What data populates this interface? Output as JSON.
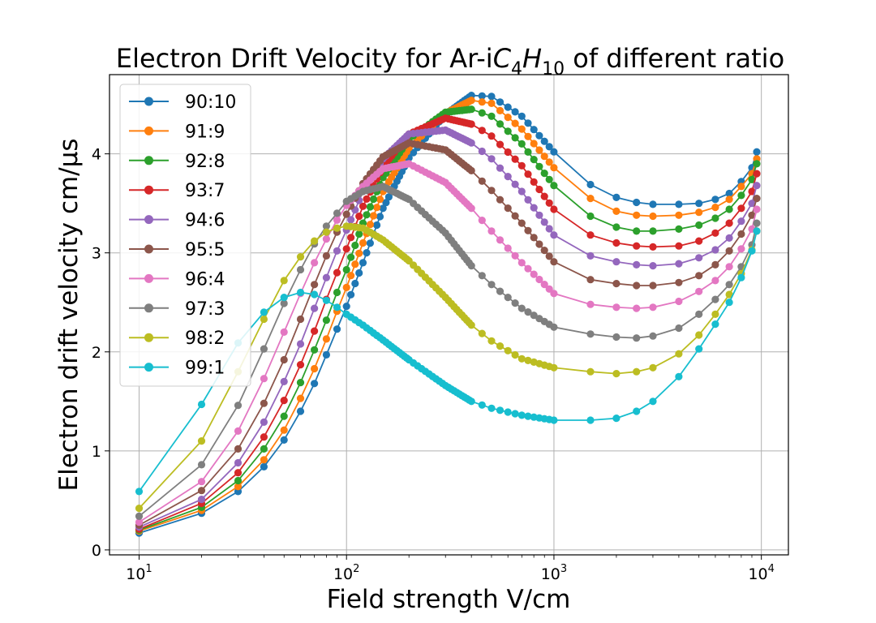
{
  "chart_data": {
    "type": "line",
    "title_prefix": "Electron Drift Velocity for Ar-i",
    "title_formula": [
      {
        "t": "C"
      },
      {
        "s": "4"
      },
      {
        "t": "H"
      },
      {
        "s": "10"
      }
    ],
    "title_suffix": " of different ratio",
    "xlabel": "Field strength V/cm",
    "ylabel": "Electron drift velocity cm/μs",
    "xscale": "log",
    "xlim": [
      7.2,
      13500
    ],
    "ylim": [
      -0.05,
      4.8
    ],
    "x_ticks": [
      {
        "base": "10",
        "exp": "1",
        "value": 10
      },
      {
        "base": "10",
        "exp": "2",
        "value": 100
      },
      {
        "base": "10",
        "exp": "3",
        "value": 1000
      },
      {
        "base": "10",
        "exp": "4",
        "value": 10000
      }
    ],
    "y_ticks": [
      0,
      1,
      2,
      3,
      4
    ],
    "grid": true,
    "legend_position": "upper-left",
    "series": [
      {
        "name": "90:10",
        "color": "#1f77b4",
        "anchors": [
          [
            10,
            0.17
          ],
          [
            20,
            0.37
          ],
          [
            30,
            0.59
          ],
          [
            40,
            0.84
          ],
          [
            50,
            1.11
          ],
          [
            60,
            1.4
          ],
          [
            70,
            1.68
          ],
          [
            80,
            1.97
          ],
          [
            90,
            2.23
          ],
          [
            100,
            2.46
          ],
          [
            120,
            2.9
          ],
          [
            150,
            3.45
          ],
          [
            200,
            3.96
          ],
          [
            300,
            4.4
          ],
          [
            400,
            4.59
          ],
          [
            500,
            4.58
          ],
          [
            700,
            4.38
          ],
          [
            1000,
            4.02
          ],
          [
            1500,
            3.69
          ],
          [
            2000,
            3.56
          ],
          [
            2500,
            3.51
          ],
          [
            3000,
            3.49
          ],
          [
            4000,
            3.49
          ],
          [
            5000,
            3.5
          ],
          [
            6000,
            3.54
          ],
          [
            7000,
            3.6
          ],
          [
            8000,
            3.72
          ],
          [
            9000,
            3.86
          ],
          [
            9500,
            4.02
          ]
        ]
      },
      {
        "name": "91:9",
        "color": "#ff7f0e",
        "anchors": [
          [
            10,
            0.19
          ],
          [
            20,
            0.4
          ],
          [
            30,
            0.64
          ],
          [
            40,
            0.91
          ],
          [
            50,
            1.21
          ],
          [
            60,
            1.53
          ],
          [
            70,
            1.83
          ],
          [
            80,
            2.13
          ],
          [
            90,
            2.41
          ],
          [
            100,
            2.65
          ],
          [
            120,
            3.1
          ],
          [
            150,
            3.62
          ],
          [
            200,
            4.06
          ],
          [
            300,
            4.41
          ],
          [
            400,
            4.54
          ],
          [
            500,
            4.51
          ],
          [
            700,
            4.25
          ],
          [
            1000,
            3.86
          ],
          [
            1500,
            3.55
          ],
          [
            2000,
            3.42
          ],
          [
            2500,
            3.38
          ],
          [
            3000,
            3.37
          ],
          [
            4000,
            3.38
          ],
          [
            5000,
            3.41
          ],
          [
            6000,
            3.46
          ],
          [
            7000,
            3.54
          ],
          [
            8000,
            3.67
          ],
          [
            9000,
            3.8
          ],
          [
            9500,
            3.95
          ]
        ]
      },
      {
        "name": "92:8",
        "color": "#2ca02c",
        "anchors": [
          [
            10,
            0.2
          ],
          [
            20,
            0.43
          ],
          [
            30,
            0.7
          ],
          [
            40,
            1.02
          ],
          [
            50,
            1.35
          ],
          [
            60,
            1.69
          ],
          [
            70,
            2.02
          ],
          [
            80,
            2.32
          ],
          [
            90,
            2.6
          ],
          [
            100,
            2.83
          ],
          [
            120,
            3.3
          ],
          [
            150,
            3.76
          ],
          [
            200,
            4.15
          ],
          [
            300,
            4.42
          ],
          [
            400,
            4.45
          ],
          [
            500,
            4.38
          ],
          [
            700,
            4.1
          ],
          [
            1000,
            3.68
          ],
          [
            1500,
            3.37
          ],
          [
            2000,
            3.26
          ],
          [
            2500,
            3.22
          ],
          [
            3000,
            3.22
          ],
          [
            4000,
            3.24
          ],
          [
            5000,
            3.28
          ],
          [
            6000,
            3.35
          ],
          [
            7000,
            3.44
          ],
          [
            8000,
            3.58
          ],
          [
            9000,
            3.74
          ],
          [
            9500,
            3.9
          ]
        ]
      },
      {
        "name": "93:7",
        "color": "#d62728",
        "anchors": [
          [
            10,
            0.21
          ],
          [
            20,
            0.47
          ],
          [
            30,
            0.78
          ],
          [
            40,
            1.14
          ],
          [
            50,
            1.51
          ],
          [
            60,
            1.87
          ],
          [
            70,
            2.21
          ],
          [
            80,
            2.53
          ],
          [
            90,
            2.8
          ],
          [
            100,
            3.04
          ],
          [
            120,
            3.47
          ],
          [
            150,
            3.87
          ],
          [
            200,
            4.2
          ],
          [
            300,
            4.36
          ],
          [
            400,
            4.3
          ],
          [
            500,
            4.18
          ],
          [
            700,
            3.88
          ],
          [
            1000,
            3.44
          ],
          [
            1500,
            3.18
          ],
          [
            2000,
            3.1
          ],
          [
            2500,
            3.07
          ],
          [
            3000,
            3.06
          ],
          [
            4000,
            3.07
          ],
          [
            5000,
            3.12
          ],
          [
            6000,
            3.2
          ],
          [
            7000,
            3.3
          ],
          [
            8000,
            3.45
          ],
          [
            9000,
            3.62
          ],
          [
            9500,
            3.8
          ]
        ]
      },
      {
        "name": "94:6",
        "color": "#9467bd",
        "anchors": [
          [
            10,
            0.23
          ],
          [
            20,
            0.51
          ],
          [
            30,
            0.88
          ],
          [
            40,
            1.29
          ],
          [
            50,
            1.7
          ],
          [
            60,
            2.08
          ],
          [
            70,
            2.44
          ],
          [
            80,
            2.75
          ],
          [
            90,
            3.02
          ],
          [
            100,
            3.23
          ],
          [
            120,
            3.62
          ],
          [
            150,
            3.95
          ],
          [
            200,
            4.2
          ],
          [
            300,
            4.24
          ],
          [
            400,
            4.11
          ],
          [
            500,
            3.95
          ],
          [
            700,
            3.62
          ],
          [
            1000,
            3.18
          ],
          [
            1500,
            2.97
          ],
          [
            2000,
            2.91
          ],
          [
            2500,
            2.88
          ],
          [
            3000,
            2.87
          ],
          [
            4000,
            2.89
          ],
          [
            5000,
            2.95
          ],
          [
            6000,
            3.03
          ],
          [
            7000,
            3.15
          ],
          [
            8000,
            3.32
          ],
          [
            9000,
            3.5
          ],
          [
            9500,
            3.68
          ]
        ]
      },
      {
        "name": "95:5",
        "color": "#8c564b",
        "anchors": [
          [
            10,
            0.25
          ],
          [
            20,
            0.6
          ],
          [
            30,
            1.02
          ],
          [
            40,
            1.48
          ],
          [
            50,
            1.92
          ],
          [
            60,
            2.33
          ],
          [
            70,
            2.68
          ],
          [
            80,
            2.97
          ],
          [
            90,
            3.21
          ],
          [
            100,
            3.39
          ],
          [
            120,
            3.7
          ],
          [
            150,
            3.97
          ],
          [
            200,
            4.11
          ],
          [
            300,
            4.04
          ],
          [
            400,
            3.83
          ],
          [
            500,
            3.63
          ],
          [
            700,
            3.3
          ],
          [
            1000,
            2.91
          ],
          [
            1500,
            2.73
          ],
          [
            2000,
            2.69
          ],
          [
            2500,
            2.67
          ],
          [
            3000,
            2.67
          ],
          [
            4000,
            2.7
          ],
          [
            5000,
            2.77
          ],
          [
            6000,
            2.88
          ],
          [
            7000,
            3.02
          ],
          [
            8000,
            3.19
          ],
          [
            9000,
            3.38
          ],
          [
            9500,
            3.55
          ]
        ]
      },
      {
        "name": "96:4",
        "color": "#e377c2",
        "anchors": [
          [
            10,
            0.28
          ],
          [
            20,
            0.69
          ],
          [
            30,
            1.2
          ],
          [
            40,
            1.73
          ],
          [
            50,
            2.2
          ],
          [
            60,
            2.59
          ],
          [
            70,
            2.9
          ],
          [
            80,
            3.14
          ],
          [
            90,
            3.33
          ],
          [
            100,
            3.48
          ],
          [
            120,
            3.67
          ],
          [
            150,
            3.85
          ],
          [
            200,
            3.9
          ],
          [
            300,
            3.71
          ],
          [
            400,
            3.45
          ],
          [
            500,
            3.22
          ],
          [
            700,
            2.9
          ],
          [
            1000,
            2.59
          ],
          [
            1500,
            2.48
          ],
          [
            2000,
            2.45
          ],
          [
            2500,
            2.44
          ],
          [
            3000,
            2.45
          ],
          [
            4000,
            2.51
          ],
          [
            5000,
            2.61
          ],
          [
            6000,
            2.72
          ],
          [
            7000,
            2.86
          ],
          [
            8000,
            3.04
          ],
          [
            9000,
            3.24
          ],
          [
            9500,
            3.44
          ]
        ]
      },
      {
        "name": "97:3",
        "color": "#7f7f7f",
        "anchors": [
          [
            10,
            0.34
          ],
          [
            20,
            0.86
          ],
          [
            30,
            1.46
          ],
          [
            40,
            2.03
          ],
          [
            50,
            2.49
          ],
          [
            60,
            2.83
          ],
          [
            70,
            3.09
          ],
          [
            80,
            3.27
          ],
          [
            90,
            3.4
          ],
          [
            100,
            3.52
          ],
          [
            120,
            3.62
          ],
          [
            150,
            3.67
          ],
          [
            200,
            3.54
          ],
          [
            300,
            3.2
          ],
          [
            400,
            2.87
          ],
          [
            500,
            2.68
          ],
          [
            700,
            2.44
          ],
          [
            1000,
            2.25
          ],
          [
            1500,
            2.18
          ],
          [
            2000,
            2.15
          ],
          [
            2500,
            2.14
          ],
          [
            3000,
            2.16
          ],
          [
            4000,
            2.24
          ],
          [
            5000,
            2.38
          ],
          [
            6000,
            2.53
          ],
          [
            7000,
            2.68
          ],
          [
            8000,
            2.86
          ],
          [
            9000,
            3.08
          ],
          [
            9500,
            3.3
          ]
        ]
      },
      {
        "name": "98:2",
        "color": "#bcbd22",
        "anchors": [
          [
            10,
            0.42
          ],
          [
            20,
            1.1
          ],
          [
            30,
            1.8
          ],
          [
            40,
            2.33
          ],
          [
            50,
            2.72
          ],
          [
            60,
            2.96
          ],
          [
            70,
            3.12
          ],
          [
            80,
            3.21
          ],
          [
            90,
            3.25
          ],
          [
            100,
            3.27
          ],
          [
            120,
            3.25
          ],
          [
            150,
            3.13
          ],
          [
            200,
            2.92
          ],
          [
            300,
            2.55
          ],
          [
            400,
            2.27
          ],
          [
            500,
            2.11
          ],
          [
            700,
            1.93
          ],
          [
            1000,
            1.84
          ],
          [
            1500,
            1.8
          ],
          [
            2000,
            1.78
          ],
          [
            2500,
            1.8
          ],
          [
            3000,
            1.84
          ],
          [
            4000,
            1.98
          ],
          [
            5000,
            2.17
          ],
          [
            6000,
            2.38
          ],
          [
            7000,
            2.58
          ],
          [
            8000,
            2.79
          ],
          [
            9000,
            3.03
          ],
          [
            9500,
            3.22
          ]
        ]
      },
      {
        "name": "99:1",
        "color": "#17becf",
        "anchors": [
          [
            10,
            0.59
          ],
          [
            20,
            1.47
          ],
          [
            30,
            2.09
          ],
          [
            40,
            2.4
          ],
          [
            50,
            2.55
          ],
          [
            60,
            2.6
          ],
          [
            70,
            2.58
          ],
          [
            80,
            2.52
          ],
          [
            90,
            2.45
          ],
          [
            100,
            2.38
          ],
          [
            120,
            2.27
          ],
          [
            150,
            2.12
          ],
          [
            200,
            1.92
          ],
          [
            300,
            1.66
          ],
          [
            400,
            1.5
          ],
          [
            500,
            1.43
          ],
          [
            700,
            1.36
          ],
          [
            1000,
            1.31
          ],
          [
            1500,
            1.31
          ],
          [
            2000,
            1.33
          ],
          [
            2500,
            1.4
          ],
          [
            3000,
            1.5
          ],
          [
            4000,
            1.75
          ],
          [
            5000,
            2.03
          ],
          [
            6000,
            2.28
          ],
          [
            7000,
            2.5
          ],
          [
            8000,
            2.75
          ],
          [
            9000,
            3.02
          ],
          [
            9500,
            3.22
          ]
        ]
      }
    ]
  }
}
